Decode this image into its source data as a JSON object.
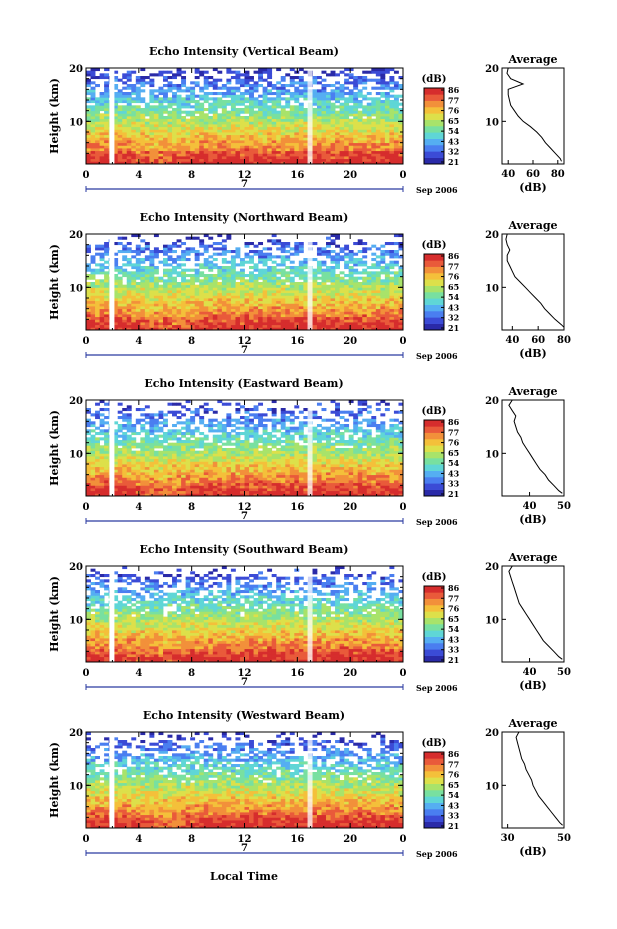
{
  "figure": {
    "xlabel": "Local Time"
  },
  "palette": [
    "#2a2aa8",
    "#3b4bd6",
    "#4a7ef0",
    "#55aef2",
    "#5fd6d6",
    "#78e0a0",
    "#a8e36a",
    "#dde04a",
    "#f4c03a",
    "#f2903a",
    "#e95a3a",
    "#d62d2d"
  ],
  "chart_data": [
    {
      "type": "heatmap",
      "title": "Echo Intensity (Vertical Beam)",
      "ylabel": "Height (km)",
      "x_ticks": [
        "0",
        "4",
        "8",
        "12",
        "16",
        "20",
        "0"
      ],
      "y_ticks": [
        "20",
        "10"
      ],
      "date_marker": "7",
      "date_label": "Sep 2006",
      "colorbar": {
        "unit": "(dB)",
        "labels": [
          "86",
          "77",
          "76",
          "65",
          "54",
          "43",
          "32",
          "21"
        ]
      },
      "gap_times": [
        2,
        17
      ],
      "profile": {
        "title": "Average",
        "xlabel": "(dB)",
        "x_ticks": [
          "40",
          "60",
          "80"
        ],
        "y_ticks": [
          "20",
          "10"
        ],
        "xlim": [
          35,
          85
        ],
        "ylim": [
          2,
          20
        ],
        "heights": [
          2.5,
          3,
          4,
          5,
          6,
          7,
          8,
          9,
          10,
          11,
          12,
          13,
          14,
          15,
          16,
          17,
          18,
          19,
          20
        ],
        "values": [
          83,
          82,
          78,
          74,
          70,
          67,
          63,
          58,
          52,
          48,
          45,
          42,
          41,
          40,
          40,
          52,
          42,
          39,
          40
        ]
      }
    },
    {
      "type": "heatmap",
      "title": "Echo Intensity (Northward Beam)",
      "ylabel": "Height (km)",
      "x_ticks": [
        "0",
        "4",
        "8",
        "12",
        "16",
        "20",
        "0"
      ],
      "y_ticks": [
        "20",
        "10"
      ],
      "date_marker": "7",
      "date_label": "Sep 2006",
      "colorbar": {
        "unit": "(dB)",
        "labels": [
          "86",
          "77",
          "76",
          "65",
          "54",
          "43",
          "32",
          "21"
        ]
      },
      "gap_times": [
        2,
        17
      ],
      "profile": {
        "title": "Average",
        "xlabel": "(dB)",
        "x_ticks": [
          "40",
          "60",
          "80"
        ],
        "y_ticks": [
          "20",
          "10"
        ],
        "xlim": [
          32,
          80
        ],
        "ylim": [
          2,
          20
        ],
        "heights": [
          2.5,
          3,
          4,
          5,
          6,
          7,
          8,
          9,
          10,
          11,
          12,
          13,
          14,
          15,
          16,
          17,
          18,
          19,
          20
        ],
        "values": [
          80,
          78,
          73,
          69,
          65,
          62,
          58,
          54,
          50,
          46,
          42,
          40,
          38,
          36,
          36,
          38,
          36,
          35,
          36
        ]
      }
    },
    {
      "type": "heatmap",
      "title": "Echo Intensity (Eastward Beam)",
      "ylabel": "Height (km)",
      "x_ticks": [
        "0",
        "4",
        "8",
        "12",
        "16",
        "20",
        "0"
      ],
      "y_ticks": [
        "20",
        "10"
      ],
      "date_marker": "7",
      "date_label": "Sep 2006",
      "colorbar": {
        "unit": "(dB)",
        "labels": [
          "86",
          "77",
          "76",
          "65",
          "54",
          "43",
          "33",
          "21"
        ]
      },
      "gap_times": [
        2,
        17
      ],
      "profile": {
        "title": "Average",
        "xlabel": "(dB)",
        "x_ticks": [
          "40",
          "50"
        ],
        "y_ticks": [
          "20",
          "10"
        ],
        "xlim": [
          32,
          50
        ],
        "ylim": [
          2,
          20
        ],
        "heights": [
          2.5,
          3,
          4,
          5,
          6,
          7,
          8,
          9,
          10,
          11,
          12,
          13,
          14,
          15,
          16,
          17,
          18,
          19,
          20
        ],
        "values": [
          49.5,
          48.5,
          47,
          45.5,
          44.5,
          43,
          42,
          41,
          40,
          39,
          38,
          37.5,
          36.5,
          36,
          35.5,
          36,
          35,
          34,
          35
        ]
      }
    },
    {
      "type": "heatmap",
      "title": "Echo Intensity (Southward Beam)",
      "ylabel": "Height (km)",
      "x_ticks": [
        "0",
        "4",
        "8",
        "12",
        "16",
        "20",
        "0"
      ],
      "y_ticks": [
        "20",
        "10"
      ],
      "date_marker": "7",
      "date_label": "Sep 2006",
      "colorbar": {
        "unit": "(dB)",
        "labels": [
          "86",
          "77",
          "76",
          "65",
          "54",
          "43",
          "33",
          "21"
        ]
      },
      "gap_times": [
        2,
        17
      ],
      "profile": {
        "title": "Average",
        "xlabel": "(dB)",
        "x_ticks": [
          "40",
          "50"
        ],
        "y_ticks": [
          "20",
          "10"
        ],
        "xlim": [
          32,
          50
        ],
        "ylim": [
          2,
          20
        ],
        "heights": [
          2.5,
          3,
          4,
          5,
          6,
          7,
          8,
          9,
          10,
          11,
          12,
          13,
          14,
          15,
          16,
          17,
          18,
          19,
          20
        ],
        "values": [
          49.5,
          48.5,
          47,
          45.5,
          44,
          43,
          42,
          41,
          40,
          39,
          38,
          37,
          36.5,
          36,
          35.5,
          35,
          34.5,
          34,
          35
        ]
      }
    },
    {
      "type": "heatmap",
      "title": "Echo Intensity (Westward Beam)",
      "ylabel": "Height (km)",
      "x_ticks": [
        "0",
        "4",
        "8",
        "12",
        "16",
        "20",
        "0"
      ],
      "y_ticks": [
        "20",
        "10"
      ],
      "date_marker": "7",
      "date_label": "Sep 2006",
      "colorbar": {
        "unit": "(dB)",
        "labels": [
          "86",
          "77",
          "76",
          "65",
          "54",
          "43",
          "33",
          "21"
        ]
      },
      "gap_times": [
        2,
        17
      ],
      "profile": {
        "title": "Average",
        "xlabel": "(dB)",
        "x_ticks": [
          "30",
          "50"
        ],
        "y_ticks": [
          "20",
          "10"
        ],
        "xlim": [
          28,
          50
        ],
        "ylim": [
          2,
          20
        ],
        "heights": [
          2.5,
          3,
          4,
          5,
          6,
          7,
          8,
          9,
          10,
          11,
          12,
          13,
          14,
          15,
          16,
          17,
          18,
          19,
          20
        ],
        "values": [
          49.5,
          48.5,
          47,
          45.5,
          44,
          42.5,
          41,
          40,
          39,
          38.5,
          37.5,
          36.5,
          36,
          35,
          34.5,
          34,
          33.5,
          33,
          34
        ]
      }
    }
  ]
}
